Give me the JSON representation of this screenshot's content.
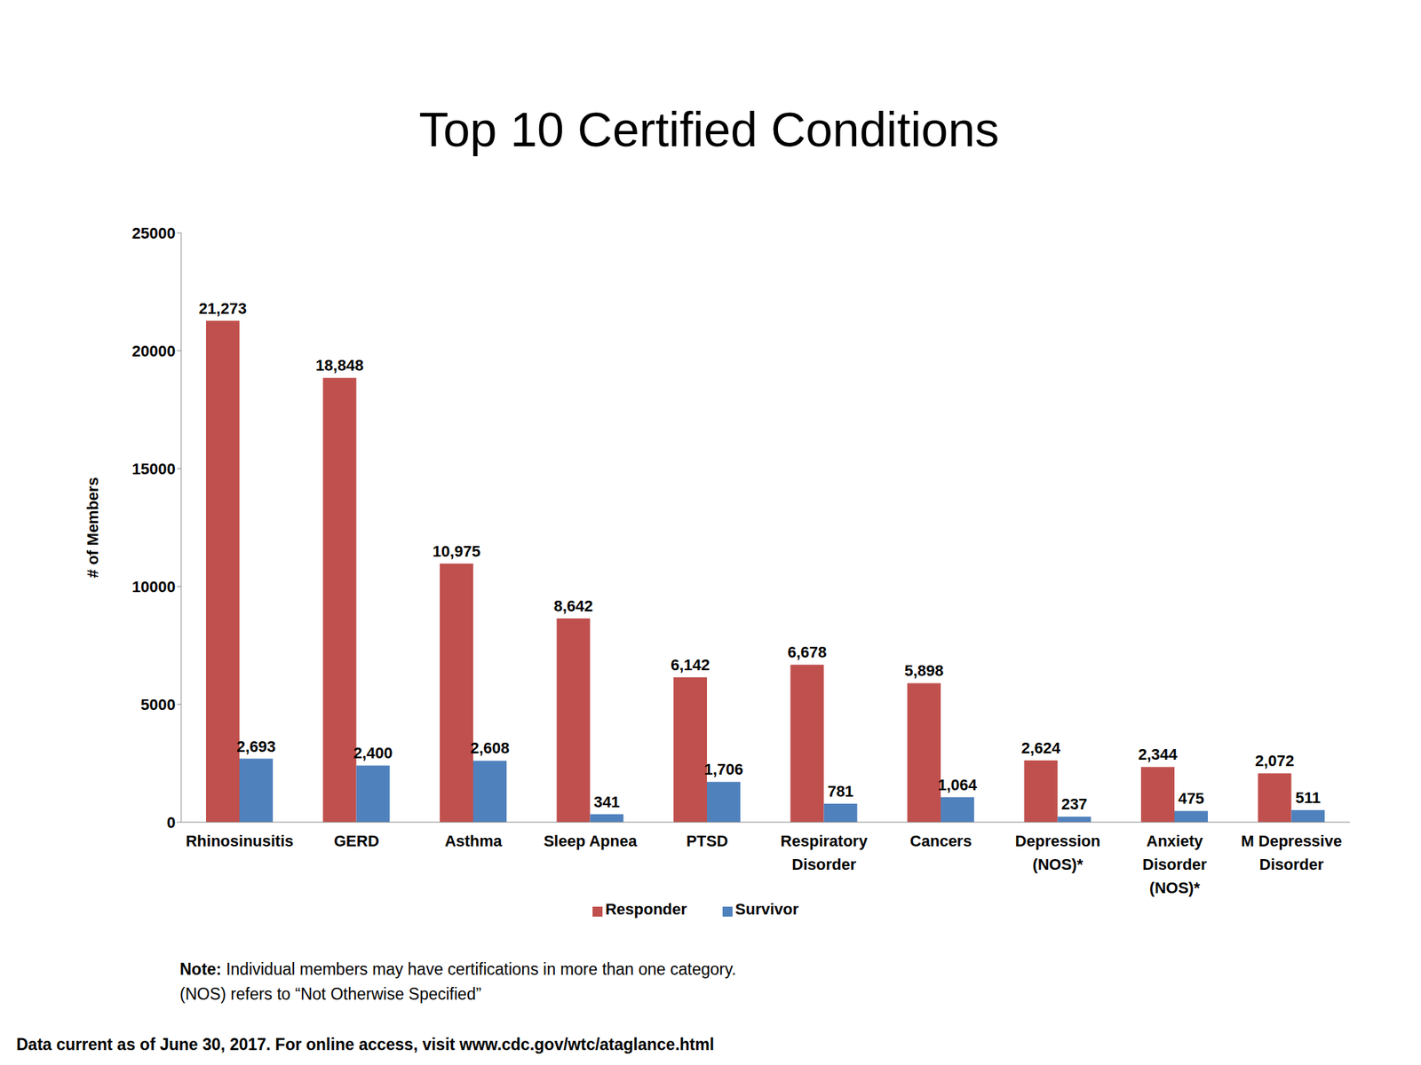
{
  "chart_data": {
    "type": "bar",
    "title": "Top 10 Certified Conditions",
    "y_label": "# of Members",
    "categories": [
      "Rhinosinusitis",
      "GERD",
      "Asthma",
      "Sleep Apnea",
      "PTSD",
      "Respiratory Disorder",
      "Cancers",
      "Depression (NOS)*",
      "Anxiety Disorder (NOS)*",
      "M Depressive Disorder"
    ],
    "series": [
      {
        "name": "Responder",
        "color": "#c0504d",
        "values": [
          21273,
          18848,
          10975,
          8642,
          6142,
          6678,
          5898,
          2624,
          2344,
          2072
        ],
        "value_labels": [
          "21,273",
          "18,848",
          "10,975",
          "8,642",
          "6,142",
          "6,678",
          "5,898",
          "2,624",
          "2,344",
          "2,072"
        ]
      },
      {
        "name": "Survivor",
        "color": "#4f81bd",
        "values": [
          2693,
          2400,
          2608,
          341,
          1706,
          781,
          1064,
          237,
          475,
          511
        ],
        "value_labels": [
          "2,693",
          "2,400",
          "2,608",
          "341",
          "1,706",
          "781",
          "1,064",
          "237",
          "475",
          "511"
        ]
      }
    ],
    "ylim": [
      0,
      25000
    ],
    "yticks": [
      0,
      5000,
      10000,
      15000,
      20000,
      25000
    ],
    "grid": false,
    "legend": "bottom",
    "data_labels": true,
    "annotations": [
      "Note: Individual members may have certifications in more than one category.",
      "(NOS) refers to “Not Otherwise Specified”",
      "Data current as of June 30, 2017. For online access, visit www.cdc.gov/wtc/ataglance.html"
    ]
  }
}
